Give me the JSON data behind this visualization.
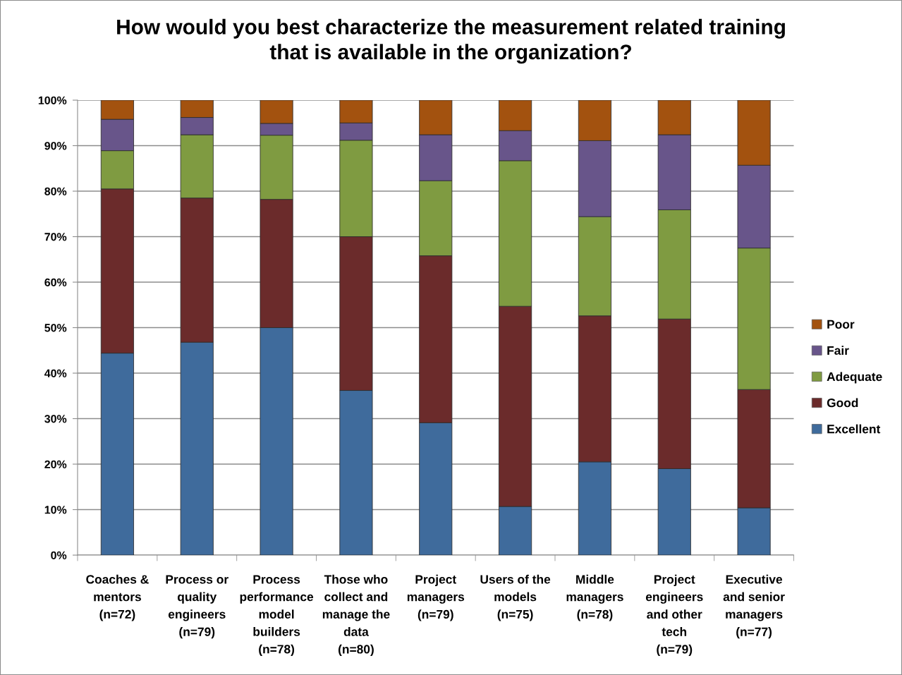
{
  "chart_data": {
    "type": "bar",
    "title": "How would you best characterize the measurement related training\nthat is available in the organization?",
    "categories": [
      "Coaches &\nmentors\n(n=72)",
      "Process or\nquality\nengineers\n(n=79)",
      "Process\nperformance\nmodel\nbuilders\n(n=78)",
      "Those who\ncollect and\nmanage the\ndata\n(n=80)",
      "Project\nmanagers\n(n=79)",
      "Users of the\nmodels\n(n=75)",
      "Middle\nmanagers\n(n=78)",
      "Project\nengineers\nand other\ntech\n(n=79)",
      "Executive\nand senior\nmanagers\n(n=77)"
    ],
    "stacked": true,
    "series": [
      {
        "name": "Excellent",
        "color": "#3f6b9c",
        "values": [
          44.4,
          46.8,
          50.0,
          36.2,
          29.1,
          10.7,
          20.5,
          19.0,
          10.4
        ]
      },
      {
        "name": "Good",
        "color": "#6b2b2b",
        "values": [
          36.1,
          31.7,
          28.2,
          33.8,
          36.7,
          44.0,
          32.1,
          32.9,
          26.0
        ]
      },
      {
        "name": "Adequate",
        "color": "#7f9b41",
        "values": [
          8.4,
          13.9,
          14.1,
          21.2,
          16.5,
          32.0,
          21.8,
          24.0,
          31.1
        ]
      },
      {
        "name": "Fair",
        "color": "#68558a",
        "values": [
          6.9,
          3.8,
          2.6,
          3.8,
          10.1,
          6.6,
          16.7,
          16.5,
          18.2
        ]
      },
      {
        "name": "Poor",
        "color": "#a3520f",
        "values": [
          4.2,
          3.8,
          5.1,
          5.0,
          7.6,
          6.7,
          8.9,
          7.6,
          14.3
        ]
      }
    ],
    "ylim": [
      0,
      100
    ],
    "yticks": [
      {
        "value": 0,
        "label": "0%"
      },
      {
        "value": 10,
        "label": "10%"
      },
      {
        "value": 20,
        "label": "20%"
      },
      {
        "value": 30,
        "label": "30%"
      },
      {
        "value": 40,
        "label": "40%"
      },
      {
        "value": 50,
        "label": "50%"
      },
      {
        "value": 60,
        "label": "60%"
      },
      {
        "value": 70,
        "label": "70%"
      },
      {
        "value": 80,
        "label": "80%"
      },
      {
        "value": 90,
        "label": "90%"
      },
      {
        "value": 100,
        "label": "100%"
      }
    ],
    "grid": "y",
    "legend": "right"
  }
}
